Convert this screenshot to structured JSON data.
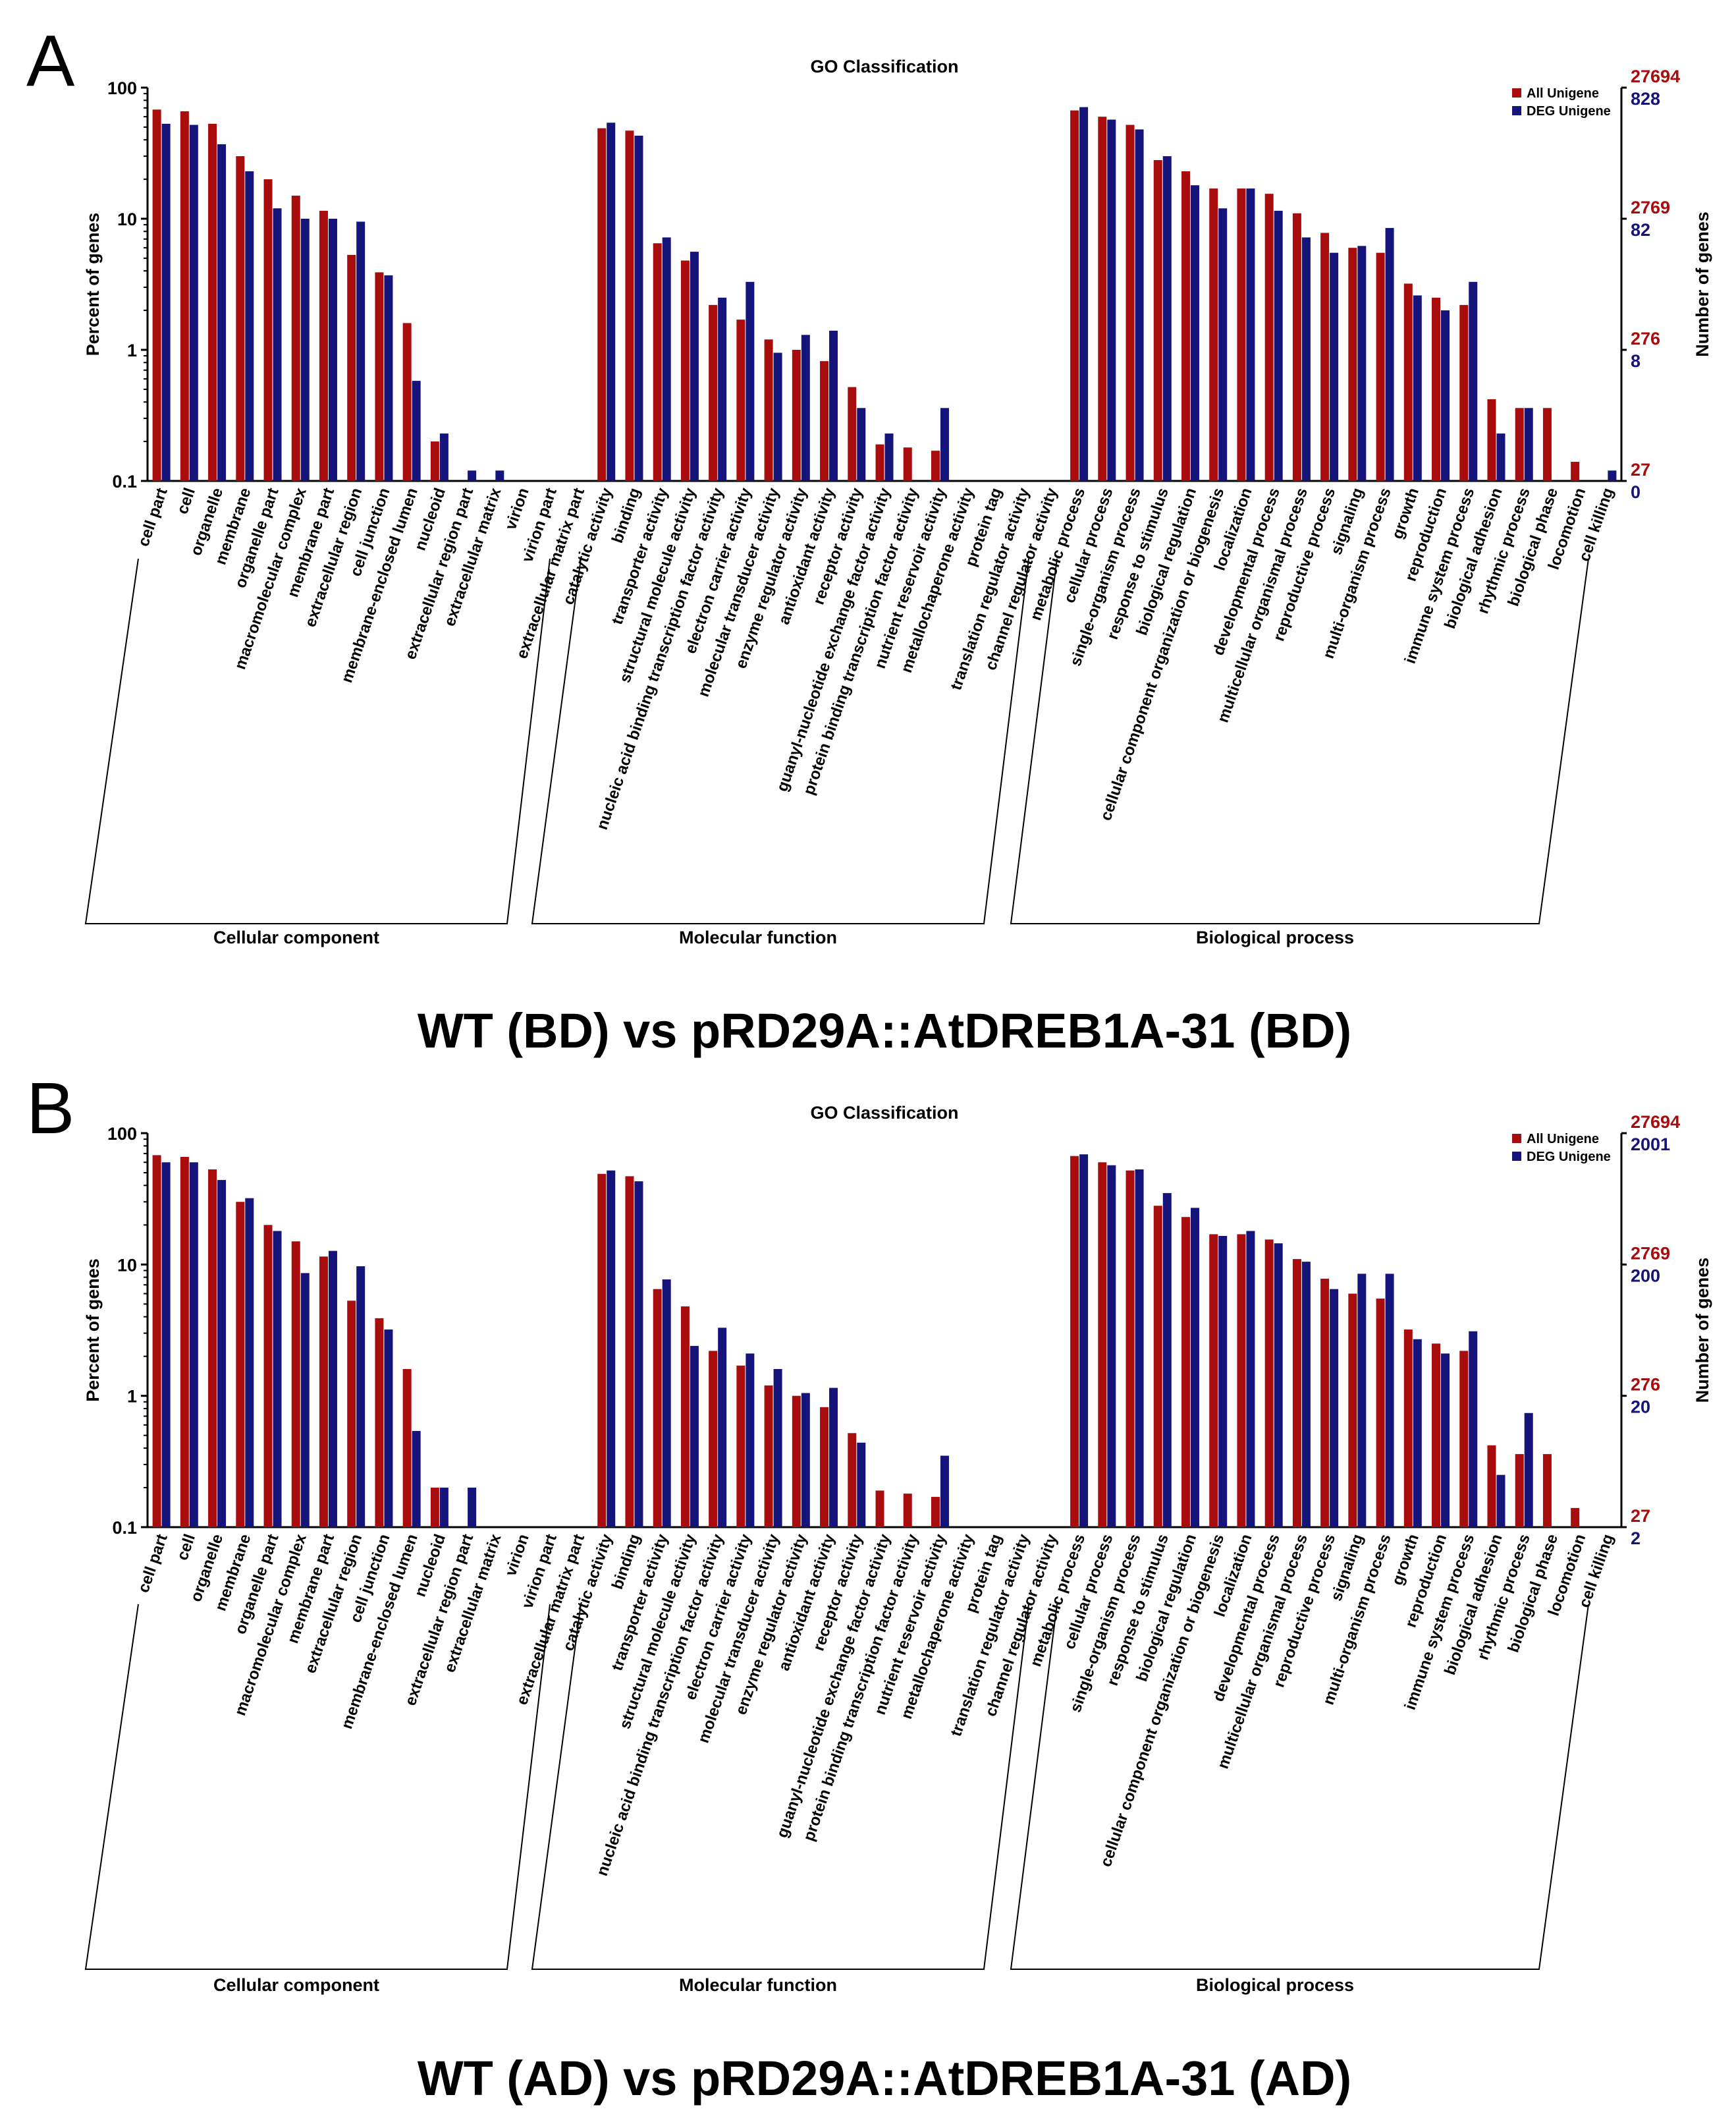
{
  "figure": {
    "colors": {
      "all": "#a80c0c",
      "deg": "#14147a",
      "axis": "#000000"
    },
    "category_groups": [
      {
        "name": "Cellular component",
        "start": 0,
        "end": 13
      },
      {
        "name": "Molecular function",
        "start": 14,
        "end": 28
      },
      {
        "name": "Biological process",
        "start": 29,
        "end": 45
      }
    ]
  },
  "chart_data": [
    {
      "panel": "A",
      "type": "bar",
      "title": "GO Classification",
      "caption": "WT (BD) vs pRD29A::AtDREB1A-31 (BD)",
      "ylabel": "Percent of genes",
      "y2label": "Number of genes",
      "yscale": "log",
      "ylim": [
        0.1,
        100
      ],
      "yticks": [
        "100",
        "10",
        "1",
        "0.1"
      ],
      "right_ticks_all": [
        "27694",
        "2769",
        "276",
        "27"
      ],
      "right_ticks_deg": [
        "828",
        "82",
        "8",
        "0"
      ],
      "categories": [
        "cell part",
        "cell",
        "organelle",
        "membrane",
        "organelle part",
        "macromolecular complex",
        "membrane part",
        "extracellular region",
        "cell junction",
        "membrane-enclosed lumen",
        "nucleoid",
        "extracellular region part",
        "extracellular matrix",
        "virion",
        "virion part",
        "extracellular matrix part",
        "catalytic activity",
        "binding",
        "transporter activity",
        "structural molecule activity",
        "nucleic acid binding transcription factor activity",
        "electron carrier activity",
        "molecular transducer activity",
        "enzyme regulator activity",
        "antioxidant activity",
        "receptor activity",
        "guanyl-nucleotide exchange factor activity",
        "protein binding transcription factor activity",
        "nutrient reservoir activity",
        "metallochaperone activity",
        "protein tag",
        "translation regulator activity",
        "channel regulator activity",
        "metabolic process",
        "cellular process",
        "single-organism process",
        "response to stimulus",
        "biological regulation",
        "cellular component organization or biogenesis",
        "localization",
        "developmental process",
        "multicellular organismal process",
        "reproductive process",
        "signaling",
        "multi-organism process",
        "growth",
        "reproduction",
        "immune system process",
        "biological adhesion",
        "rhythmic process",
        "biological phase",
        "locomotion",
        "cell killing"
      ],
      "series": [
        {
          "name": "All Unigene",
          "values": [
            68,
            66,
            53,
            30,
            20,
            15,
            11.5,
            5.3,
            3.9,
            1.6,
            0.2,
            null,
            null,
            null,
            null,
            null,
            49,
            47,
            6.5,
            4.8,
            2.2,
            1.7,
            1.2,
            1.0,
            0.82,
            0.52,
            0.19,
            0.18,
            0.17,
            null,
            null,
            null,
            null,
            67,
            60,
            52,
            28,
            23,
            17,
            17,
            15.5,
            11,
            7.8,
            6,
            5.5,
            3.2,
            2.5,
            2.2,
            0.42,
            0.36,
            0.36,
            0.14,
            null
          ]
        },
        {
          "name": "DEG Unigene",
          "values": [
            53,
            52,
            37,
            23,
            12,
            10,
            10,
            9.5,
            3.7,
            0.58,
            0.23,
            0.12,
            0.12,
            null,
            null,
            null,
            54,
            43,
            7.2,
            5.6,
            2.5,
            3.3,
            0.95,
            1.3,
            1.4,
            0.36,
            0.23,
            null,
            0.36,
            null,
            null,
            null,
            null,
            71,
            57,
            48,
            30,
            18,
            12,
            17,
            11.5,
            7.2,
            5.5,
            6.2,
            8.5,
            2.6,
            2.0,
            3.3,
            0.23,
            0.36,
            null,
            null,
            0.12
          ]
        }
      ]
    },
    {
      "panel": "B",
      "type": "bar",
      "title": "GO Classification",
      "caption": "WT (AD) vs pRD29A::AtDREB1A-31 (AD)",
      "ylabel": "Percent of genes",
      "y2label": "Number of genes",
      "yscale": "log",
      "ylim": [
        0.1,
        100
      ],
      "yticks": [
        "100",
        "10",
        "1",
        "0.1"
      ],
      "right_ticks_all": [
        "27694",
        "2769",
        "276",
        "27"
      ],
      "right_ticks_deg": [
        "2001",
        "200",
        "20",
        "2"
      ],
      "categories": [
        "cell part",
        "cell",
        "organelle",
        "membrane",
        "organelle part",
        "macromolecular complex",
        "membrane part",
        "extracellular region",
        "cell junction",
        "membrane-enclosed lumen",
        "nucleoid",
        "extracellular region part",
        "extracellular matrix",
        "virion",
        "virion part",
        "extracellular matrix part",
        "catalytic activity",
        "binding",
        "transporter activity",
        "structural molecule activity",
        "nucleic acid binding transcription factor activity",
        "electron carrier activity",
        "molecular transducer activity",
        "enzyme regulator activity",
        "antioxidant activity",
        "receptor activity",
        "guanyl-nucleotide exchange factor activity",
        "protein binding transcription factor activity",
        "nutrient reservoir activity",
        "metallochaperone activity",
        "protein tag",
        "translation regulator activity",
        "channel regulator activity",
        "metabolic process",
        "cellular process",
        "single-organism process",
        "response to stimulus",
        "biological regulation",
        "cellular component organization or biogenesis",
        "localization",
        "developmental process",
        "multicellular organismal process",
        "reproductive process",
        "signaling",
        "multi-organism process",
        "growth",
        "reproduction",
        "immune system process",
        "biological adhesion",
        "rhythmic process",
        "biological phase",
        "locomotion",
        "cell killing"
      ],
      "series": [
        {
          "name": "All Unigene",
          "values": [
            68,
            66,
            53,
            30,
            20,
            15,
            11.5,
            5.3,
            3.9,
            1.6,
            0.2,
            null,
            null,
            null,
            null,
            null,
            49,
            47,
            6.5,
            4.8,
            2.2,
            1.7,
            1.2,
            1.0,
            0.82,
            0.52,
            0.19,
            0.18,
            0.17,
            null,
            null,
            null,
            null,
            67,
            60,
            52,
            28,
            23,
            17,
            17,
            15.5,
            11,
            7.8,
            6,
            5.5,
            3.2,
            2.5,
            2.2,
            0.42,
            0.36,
            0.36,
            0.14,
            null
          ]
        },
        {
          "name": "DEG Unigene",
          "values": [
            60,
            60,
            44,
            32,
            18,
            8.6,
            12.7,
            9.7,
            3.2,
            0.54,
            0.2,
            0.2,
            null,
            null,
            null,
            null,
            52,
            43,
            7.7,
            2.4,
            3.3,
            2.1,
            1.6,
            1.05,
            1.15,
            0.44,
            null,
            null,
            0.35,
            null,
            null,
            null,
            null,
            69,
            57,
            53,
            35,
            27,
            16.5,
            18,
            14.5,
            10.5,
            6.5,
            8.5,
            8.5,
            2.7,
            2.1,
            3.1,
            0.25,
            0.74,
            null,
            null,
            null
          ]
        }
      ]
    }
  ]
}
